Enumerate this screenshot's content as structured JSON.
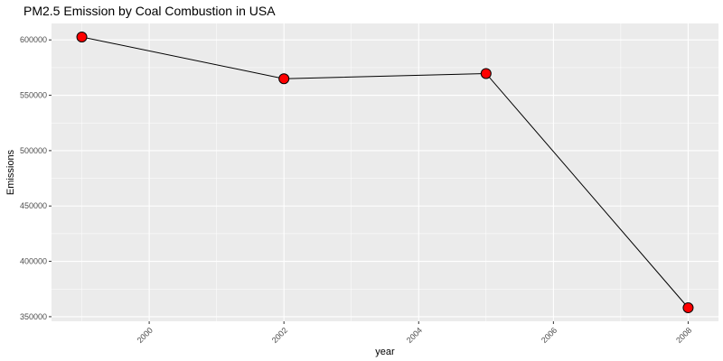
{
  "colors": {
    "panel_background": "#EBEBEB",
    "grid_line": "#FFFFFF",
    "line": "#000000",
    "point_fill": "#FF0000",
    "point_stroke": "#000000"
  },
  "chart_data": {
    "type": "line",
    "title": "PM2.5 Emission by Coal Combustion in USA",
    "xlabel": "year",
    "ylabel": "Emissions",
    "x": [
      1999,
      2002,
      2005,
      2008
    ],
    "y": [
      602624,
      564940,
      569654,
      358084
    ],
    "xlim": [
      1998.55,
      2008.45
    ],
    "ylim": [
      345855,
      614853
    ],
    "x_ticks": [
      2000,
      2002,
      2004,
      2006,
      2008
    ],
    "y_ticks": [
      350000,
      400000,
      450000,
      500000,
      550000,
      600000
    ],
    "x_tick_labels": [
      "2000",
      "2002",
      "2004",
      "2006",
      "2008"
    ],
    "y_tick_labels": [
      "350000",
      "400000",
      "450000",
      "500000",
      "550000",
      "600000"
    ],
    "grid": true,
    "legend": "none",
    "markers": "filled circles"
  }
}
